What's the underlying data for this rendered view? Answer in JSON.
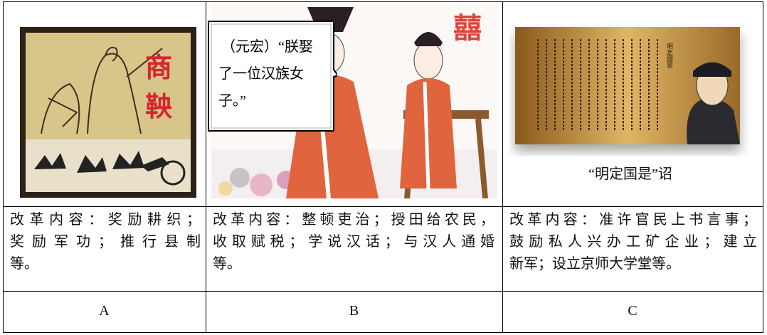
{
  "table": {
    "images": [
      {
        "title_chars": [
          "商",
          "鞅"
        ]
      },
      {
        "bubble_lines": [
          "（元宏）“朕娶",
          "了一位汉族女",
          "子。”"
        ],
        "symbol": "囍"
      },
      {
        "seal": "明定國是",
        "caption": "“明定国是”诏"
      }
    ],
    "contents": [
      {
        "lines": [
          "改革内容：奖励耕织；",
          "奖励军功；推行县制",
          "等。"
        ]
      },
      {
        "lines": [
          "改革内容：整顿吏治；授田给农民，",
          "收取赋税；学说汉话；与汉人通婚",
          "等。"
        ]
      },
      {
        "lines": [
          "改革内容：准许官民上书言事；",
          "鼓励私人兴办工矿企业；建立",
          "新军；设立京师大学堂等。"
        ]
      }
    ],
    "labels": [
      "A",
      "B",
      "C"
    ]
  }
}
